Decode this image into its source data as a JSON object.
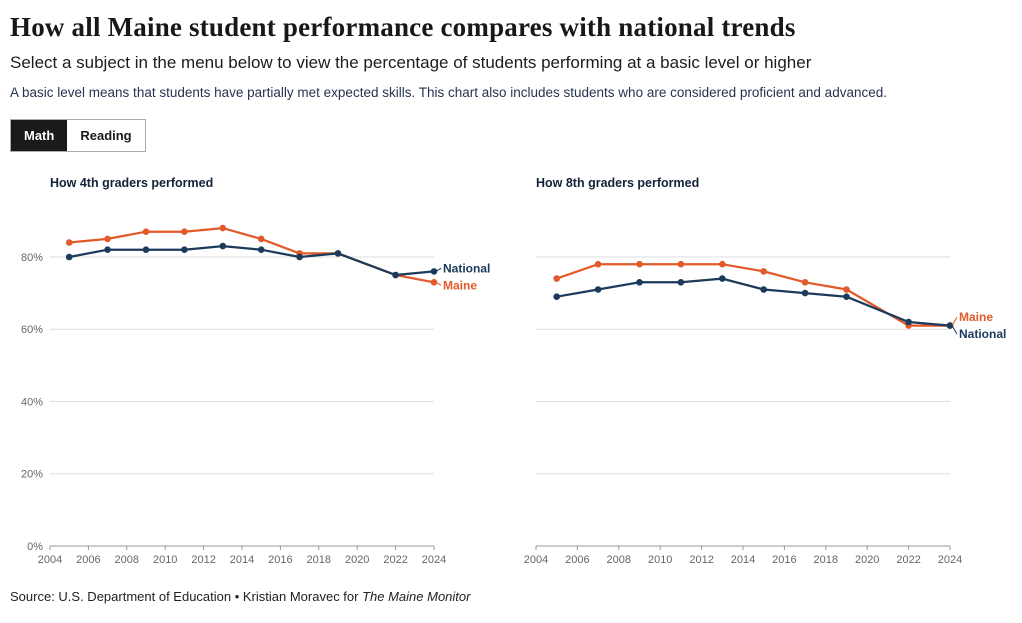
{
  "header": {
    "title": "How all Maine student performance compares with national trends",
    "subtitle": "Select a subject in the menu below to view the percentage of students performing at a basic level or higher",
    "description": "A basic level means that students have partially met expected skills. This chart also includes students who are considered proficient and advanced."
  },
  "tabs": [
    {
      "label": "Math",
      "active": true
    },
    {
      "label": "Reading",
      "active": false
    }
  ],
  "colors": {
    "maine": "#e2592a",
    "national": "#1b3a5c",
    "grid": "#dddddd",
    "axis": "#999999",
    "tick_text": "#666666"
  },
  "chart_data": [
    {
      "type": "line",
      "title": "How 4th graders performed",
      "x": [
        2005,
        2007,
        2009,
        2011,
        2013,
        2015,
        2017,
        2019,
        2022,
        2024
      ],
      "xlim": [
        2004,
        2024
      ],
      "ylim": [
        0,
        93
      ],
      "y_ticks": [
        0,
        20,
        40,
        60,
        80
      ],
      "x_ticks": [
        2004,
        2006,
        2008,
        2010,
        2012,
        2014,
        2016,
        2018,
        2020,
        2022,
        2024
      ],
      "show_y_labels": true,
      "series": [
        {
          "name": "Maine",
          "color_key": "maine",
          "values": [
            84,
            85,
            87,
            87,
            88,
            85,
            81,
            81,
            75,
            73
          ]
        },
        {
          "name": "National",
          "color_key": "national",
          "values": [
            80,
            82,
            82,
            82,
            83,
            82,
            80,
            81,
            75,
            76
          ]
        }
      ]
    },
    {
      "type": "line",
      "title": "How 8th graders performed",
      "x": [
        2005,
        2007,
        2009,
        2011,
        2013,
        2015,
        2017,
        2019,
        2022,
        2024
      ],
      "xlim": [
        2004,
        2024
      ],
      "ylim": [
        0,
        93
      ],
      "y_ticks": [
        0,
        20,
        40,
        60,
        80
      ],
      "x_ticks": [
        2004,
        2006,
        2008,
        2010,
        2012,
        2014,
        2016,
        2018,
        2020,
        2022,
        2024
      ],
      "show_y_labels": false,
      "series": [
        {
          "name": "Maine",
          "color_key": "maine",
          "values": [
            74,
            78,
            78,
            78,
            78,
            76,
            73,
            71,
            61,
            61
          ]
        },
        {
          "name": "National",
          "color_key": "national",
          "values": [
            69,
            71,
            73,
            73,
            74,
            71,
            70,
            69,
            62,
            61
          ]
        }
      ]
    }
  ],
  "source": {
    "prefix": "Source: U.S. Department of Education • Kristian Moravec for ",
    "italic": "The Maine Monitor"
  }
}
